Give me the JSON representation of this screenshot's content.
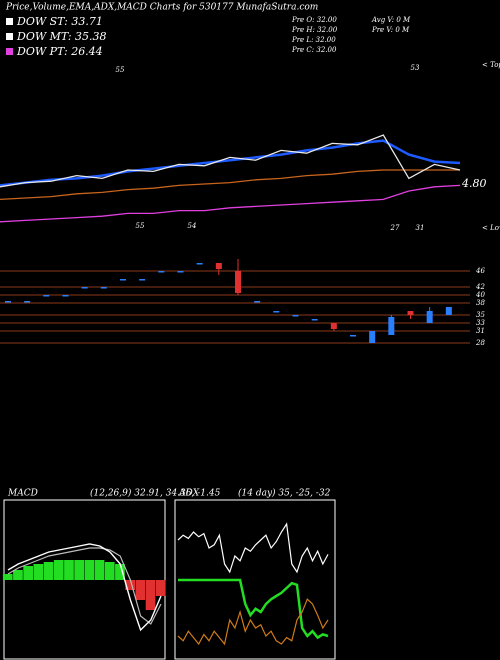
{
  "header": {
    "title": "Price,Volume,EMA,ADX,MACD Charts for 530177 MunafaSutra.com",
    "dow": [
      "DOW ST: 33.71",
      "DOW MT: 35.38",
      "DOW PT: 26.44"
    ],
    "pre": [
      "Pre  O: 32.00",
      "Pre  H: 32.00",
      "Pre  L: 32.00",
      "Pre  C: 32.00"
    ],
    "vol": [
      "Avg V: 0  M",
      "Pre  V: 0  M"
    ]
  },
  "chart_data": [
    {
      "type": "line",
      "ylim": [
        0,
        100
      ],
      "annotations": [
        "4.80",
        "< Tops",
        "< Lows",
        "55",
        "53",
        "55",
        "54",
        "27",
        "31"
      ],
      "series": [
        {
          "color": "#e8e8e8",
          "values": [
            38,
            41,
            42,
            46,
            44,
            50,
            49,
            54,
            53,
            59,
            57,
            64,
            62,
            69,
            68,
            75,
            44,
            54,
            50
          ]
        },
        {
          "color": "#1e5bff",
          "values": [
            39,
            41,
            43,
            44,
            46,
            49,
            51,
            53,
            55,
            57,
            59,
            61,
            64,
            66,
            69,
            71,
            61,
            56,
            55
          ]
        },
        {
          "color": "#c8641e",
          "values": [
            29,
            30,
            31,
            33,
            34,
            36,
            37,
            39,
            40,
            41,
            43,
            44,
            46,
            47,
            49,
            50,
            50,
            50,
            50
          ]
        },
        {
          "color": "#e040e0",
          "values": [
            13,
            14,
            15,
            16,
            17,
            19,
            19,
            21,
            21,
            23,
            24,
            25,
            26,
            27,
            28,
            29,
            35,
            38,
            39
          ]
        }
      ]
    },
    {
      "type": "candlestick",
      "ylim": [
        26,
        50
      ],
      "yticks": [
        46,
        42,
        40,
        38,
        35,
        33,
        31,
        28
      ],
      "open": [
        38.5,
        38.5,
        40,
        40,
        42,
        42,
        44,
        44,
        46,
        46,
        48,
        48,
        46,
        38.5,
        36,
        35,
        34,
        33,
        30,
        28,
        30,
        36,
        33,
        35
      ],
      "high": [
        38.5,
        38.5,
        40,
        40,
        42,
        42,
        44,
        44,
        46,
        46,
        48,
        48,
        49,
        38.5,
        36,
        35,
        34,
        33,
        30,
        31,
        35,
        36,
        37,
        37
      ],
      "low": [
        38.5,
        38.5,
        40,
        40,
        42,
        42,
        44,
        44,
        46,
        46,
        48,
        45,
        40,
        38.5,
        36,
        35,
        34,
        31,
        30,
        28,
        30,
        34,
        33,
        35
      ],
      "close": [
        38.5,
        38.5,
        40,
        40,
        42,
        42,
        44,
        44,
        46,
        46,
        48,
        46.5,
        40.5,
        38.5,
        36,
        35,
        34,
        31.5,
        30,
        31,
        34.5,
        35,
        36,
        37
      ],
      "up_color": "#2a7fff",
      "down_color": "#e03030"
    },
    {
      "type": "macd",
      "label": "MACD",
      "params": "(12,26,9) 32.91, 34.36, -1.45",
      "ylim": [
        -40,
        40
      ],
      "histogram": [
        3,
        5,
        7,
        8,
        9,
        10,
        10,
        10,
        10,
        10,
        9,
        8,
        -5,
        -10,
        -15,
        -8
      ],
      "macd": [
        5,
        8,
        10,
        12,
        14,
        15,
        16,
        17,
        18,
        17,
        14,
        8,
        -10,
        -25,
        -20,
        -8
      ],
      "signal": [
        3,
        6,
        8,
        10,
        12,
        13,
        14,
        15,
        16,
        16,
        15,
        12,
        0,
        -18,
        -22,
        -12
      ]
    },
    {
      "type": "adx",
      "label": "ADX",
      "params": "(14 day) 35, -25, -32",
      "ylim": [
        0,
        100
      ],
      "series": [
        {
          "color": "#ffffff",
          "values": [
            75,
            78,
            76,
            80,
            77,
            79,
            70,
            72,
            78,
            60,
            55,
            65,
            62,
            70,
            68,
            72,
            75,
            78,
            70,
            74,
            80,
            85,
            60,
            55,
            65,
            70,
            62,
            68,
            60,
            66
          ]
        },
        {
          "color": "#22dd22",
          "values": [
            50,
            50,
            50,
            50,
            50,
            50,
            50,
            50,
            50,
            50,
            50,
            50,
            50,
            35,
            28,
            32,
            30,
            35,
            38,
            40,
            42,
            45,
            48,
            47,
            20,
            15,
            18,
            14,
            16,
            15
          ]
        },
        {
          "color": "#d07a1a",
          "values": [
            15,
            12,
            18,
            14,
            10,
            16,
            12,
            18,
            14,
            10,
            25,
            20,
            30,
            18,
            25,
            20,
            22,
            15,
            18,
            12,
            10,
            14,
            12,
            25,
            30,
            38,
            35,
            28,
            20,
            25
          ]
        }
      ]
    }
  ]
}
